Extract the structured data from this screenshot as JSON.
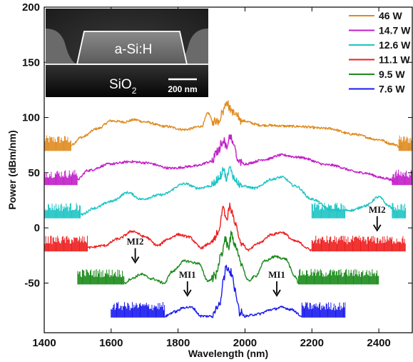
{
  "chart_data": {
    "type": "line",
    "title": "",
    "xlabel": "Wavelength (nm)",
    "ylabel": "Power (dBm/nm)",
    "xlim": [
      1400,
      2500
    ],
    "ylim": [
      -95,
      200
    ],
    "xticks": [
      1400,
      1600,
      1800,
      2000,
      2200,
      2400
    ],
    "yticks": [
      -50,
      0,
      50,
      100,
      150,
      200
    ],
    "grid": false,
    "legend_position": "top-right",
    "series": [
      {
        "name": "46 W",
        "color": "#e08a1e",
        "noise_floor": 71,
        "points": [
          [
            1480,
            75
          ],
          [
            1510,
            82
          ],
          [
            1560,
            90
          ],
          [
            1600,
            97
          ],
          [
            1640,
            96
          ],
          [
            1670,
            98
          ],
          [
            1700,
            96
          ],
          [
            1760,
            92
          ],
          [
            1820,
            89
          ],
          [
            1870,
            92
          ],
          [
            1890,
            104
          ],
          [
            1905,
            96
          ],
          [
            1920,
            97
          ],
          [
            1935,
            106
          ],
          [
            1945,
            115
          ],
          [
            1955,
            108
          ],
          [
            1970,
            103
          ],
          [
            1990,
            97
          ],
          [
            2050,
            93
          ],
          [
            2150,
            92
          ],
          [
            2250,
            90
          ],
          [
            2320,
            85
          ],
          [
            2400,
            80
          ],
          [
            2440,
            76
          ],
          [
            2470,
            73
          ]
        ],
        "noisy": [
          [
            1400,
            1480
          ],
          [
            2460,
            2500
          ]
        ]
      },
      {
        "name": "14.7 W",
        "color": "#c21ec9",
        "noise_floor": 40,
        "points": [
          [
            1500,
            44
          ],
          [
            1530,
            52
          ],
          [
            1600,
            58
          ],
          [
            1660,
            60
          ],
          [
            1700,
            59
          ],
          [
            1780,
            54
          ],
          [
            1850,
            56
          ],
          [
            1900,
            60
          ],
          [
            1920,
            70
          ],
          [
            1935,
            80
          ],
          [
            1945,
            73
          ],
          [
            1955,
            84
          ],
          [
            1965,
            76
          ],
          [
            1980,
            60
          ],
          [
            2000,
            58
          ],
          [
            2060,
            62
          ],
          [
            2110,
            66
          ],
          [
            2160,
            64
          ],
          [
            2250,
            57
          ],
          [
            2350,
            50
          ],
          [
            2420,
            45
          ],
          [
            2450,
            42
          ]
        ],
        "noisy": [
          [
            1400,
            1500
          ],
          [
            2440,
            2500
          ]
        ]
      },
      {
        "name": "12.6 W",
        "color": "#1ec4c4",
        "noise_floor": 10,
        "points": [
          [
            1510,
            12
          ],
          [
            1550,
            18
          ],
          [
            1600,
            24
          ],
          [
            1650,
            32
          ],
          [
            1690,
            26
          ],
          [
            1750,
            30
          ],
          [
            1820,
            40
          ],
          [
            1860,
            36
          ],
          [
            1900,
            38
          ],
          [
            1925,
            46
          ],
          [
            1935,
            54
          ],
          [
            1945,
            44
          ],
          [
            1955,
            54
          ],
          [
            1970,
            44
          ],
          [
            1990,
            38
          ],
          [
            2030,
            36
          ],
          [
            2080,
            44
          ],
          [
            2110,
            46
          ],
          [
            2150,
            38
          ],
          [
            2200,
            26
          ],
          [
            2260,
            16
          ],
          [
            2320,
            16
          ],
          [
            2360,
            20
          ],
          [
            2400,
            28
          ],
          [
            2430,
            20
          ],
          [
            2450,
            14
          ]
        ],
        "noisy": [
          [
            1400,
            1510
          ],
          [
            2200,
            2300
          ],
          [
            2440,
            2480
          ]
        ]
      },
      {
        "name": "11.1 W",
        "color": "#ee1e1e",
        "noise_floor": -20,
        "points": [
          [
            1530,
            -18
          ],
          [
            1580,
            -16
          ],
          [
            1620,
            -10
          ],
          [
            1665,
            -3
          ],
          [
            1700,
            -8
          ],
          [
            1740,
            -16
          ],
          [
            1770,
            -10
          ],
          [
            1800,
            -6
          ],
          [
            1830,
            -8
          ],
          [
            1870,
            -18
          ],
          [
            1895,
            -14
          ],
          [
            1920,
            -6
          ],
          [
            1935,
            18
          ],
          [
            1945,
            8
          ],
          [
            1955,
            20
          ],
          [
            1970,
            5
          ],
          [
            1990,
            -14
          ],
          [
            2010,
            -20
          ],
          [
            2040,
            -14
          ],
          [
            2080,
            -6
          ],
          [
            2110,
            -4
          ],
          [
            2150,
            -12
          ],
          [
            2200,
            -20
          ]
        ],
        "noisy": [
          [
            1400,
            1530
          ],
          [
            2200,
            2480
          ]
        ]
      },
      {
        "name": "9.5 W",
        "color": "#1a8a1a",
        "noise_floor": -50,
        "points": [
          [
            1640,
            -50
          ],
          [
            1660,
            -46
          ],
          [
            1690,
            -42
          ],
          [
            1720,
            -46
          ],
          [
            1760,
            -50
          ],
          [
            1780,
            -40
          ],
          [
            1820,
            -30
          ],
          [
            1860,
            -32
          ],
          [
            1890,
            -48
          ],
          [
            1910,
            -44
          ],
          [
            1930,
            -25
          ],
          [
            1940,
            -10
          ],
          [
            1950,
            -18
          ],
          [
            1960,
            -6
          ],
          [
            1970,
            -15
          ],
          [
            1985,
            -30
          ],
          [
            2010,
            -48
          ],
          [
            2030,
            -44
          ],
          [
            2060,
            -30
          ],
          [
            2090,
            -26
          ],
          [
            2120,
            -28
          ],
          [
            2150,
            -44
          ],
          [
            2160,
            -50
          ]
        ],
        "noisy": [
          [
            1500,
            1640
          ],
          [
            2160,
            2400
          ]
        ]
      },
      {
        "name": "7.6 W",
        "color": "#1a1aee",
        "noise_floor": -80,
        "points": [
          [
            1760,
            -80
          ],
          [
            1790,
            -76
          ],
          [
            1820,
            -72
          ],
          [
            1840,
            -72
          ],
          [
            1870,
            -80
          ],
          [
            1900,
            -80
          ],
          [
            1925,
            -68
          ],
          [
            1935,
            -48
          ],
          [
            1945,
            -35
          ],
          [
            1960,
            -40
          ],
          [
            1970,
            -58
          ],
          [
            1985,
            -76
          ],
          [
            2000,
            -80
          ],
          [
            2040,
            -78
          ],
          [
            2080,
            -74
          ],
          [
            2110,
            -72
          ],
          [
            2140,
            -74
          ],
          [
            2170,
            -80
          ]
        ],
        "noisy": [
          [
            1600,
            1760
          ],
          [
            2170,
            2300
          ]
        ]
      }
    ],
    "annotations": [
      {
        "text": "MI2",
        "x": 1672,
        "y": -32
      },
      {
        "text": "MI2",
        "x": 2395,
        "y": -3
      },
      {
        "text": "MI1",
        "x": 1828,
        "y": -62
      },
      {
        "text": "MI1",
        "x": 2095,
        "y": -62
      }
    ],
    "inset": {
      "labels": [
        "a-Si:H",
        "SiO",
        "200 nm"
      ],
      "subscript": "2"
    }
  }
}
